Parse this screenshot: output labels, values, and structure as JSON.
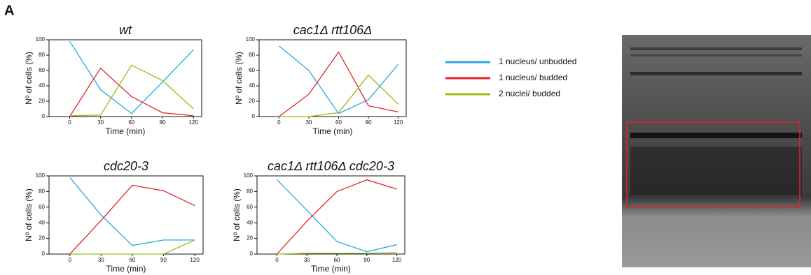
{
  "panel_label": "A",
  "legend": [
    {
      "name": "1 nucleus/ unbudded",
      "color": "#29a9df"
    },
    {
      "name": "1 nucleus/ budded",
      "color": "#e3222b"
    },
    {
      "name": "2 nuclei/ budded",
      "color": "#9bbb17"
    }
  ],
  "chart_data": [
    {
      "type": "line",
      "title": "wt",
      "x_label": "Time (min)",
      "y_label": "Nº of cells (%)",
      "x": [
        0,
        30,
        60,
        90,
        120
      ],
      "xlim": [
        -20,
        128
      ],
      "xticks": [
        0,
        30,
        60,
        90,
        120
      ],
      "ylim": [
        0,
        100
      ],
      "yticks": [
        0,
        20,
        40,
        60,
        80,
        100
      ],
      "series": [
        {
          "color": "#29a9df",
          "values": [
            98,
            35,
            4,
            45,
            87
          ]
        },
        {
          "color": "#e3222b",
          "values": [
            0,
            63,
            26,
            5,
            1
          ]
        },
        {
          "color": "#9bbb17",
          "values": [
            1,
            2,
            67,
            47,
            10
          ]
        }
      ]
    },
    {
      "type": "line",
      "title": "cac1Δ rtt106Δ",
      "x_label": "Time (min)",
      "y_label": "Nº of cells (%)",
      "x": [
        0,
        30,
        60,
        90,
        120
      ],
      "xlim": [
        -20,
        128
      ],
      "xticks": [
        0,
        30,
        60,
        90,
        120
      ],
      "ylim": [
        0,
        100
      ],
      "yticks": [
        0,
        20,
        40,
        60,
        80,
        100
      ],
      "series": [
        {
          "color": "#29a9df",
          "values": [
            92,
            60,
            4,
            22,
            68
          ]
        },
        {
          "color": "#e3222b",
          "values": [
            0,
            29,
            84,
            14,
            6
          ]
        },
        {
          "color": "#9bbb17",
          "values": [
            0,
            0,
            5,
            54,
            16
          ]
        }
      ]
    },
    {
      "type": "line",
      "title": "cdc20-3",
      "x_label": "Time (min)",
      "y_label": "Nº of cells (%)",
      "x": [
        0,
        30,
        60,
        90,
        120
      ],
      "xlim": [
        -20,
        128
      ],
      "xticks": [
        0,
        30,
        60,
        90,
        120
      ],
      "ylim": [
        0,
        100
      ],
      "yticks": [
        0,
        20,
        40,
        60,
        80,
        100
      ],
      "series": [
        {
          "color": "#29a9df",
          "values": [
            98,
            50,
            11,
            18,
            18
          ]
        },
        {
          "color": "#e3222b",
          "values": [
            0,
            43,
            88,
            81,
            62
          ]
        },
        {
          "color": "#9bbb17",
          "values": [
            0,
            0,
            0,
            0,
            18
          ]
        }
      ]
    },
    {
      "type": "line",
      "title": "cac1Δ rtt106Δ cdc20-3",
      "x_label": "Time (min)",
      "y_label": "Nº of cells (%)",
      "x": [
        0,
        30,
        60,
        90,
        120
      ],
      "xlim": [
        -20,
        128
      ],
      "xticks": [
        0,
        30,
        60,
        90,
        120
      ],
      "ylim": [
        0,
        100
      ],
      "yticks": [
        0,
        20,
        40,
        60,
        80,
        100
      ],
      "series": [
        {
          "color": "#29a9df",
          "values": [
            95,
            56,
            16,
            3,
            12
          ]
        },
        {
          "color": "#e3222b",
          "values": [
            0,
            42,
            80,
            95,
            83
          ]
        },
        {
          "color": "#9bbb17",
          "values": [
            0,
            1,
            1,
            1,
            2
          ]
        }
      ]
    }
  ]
}
